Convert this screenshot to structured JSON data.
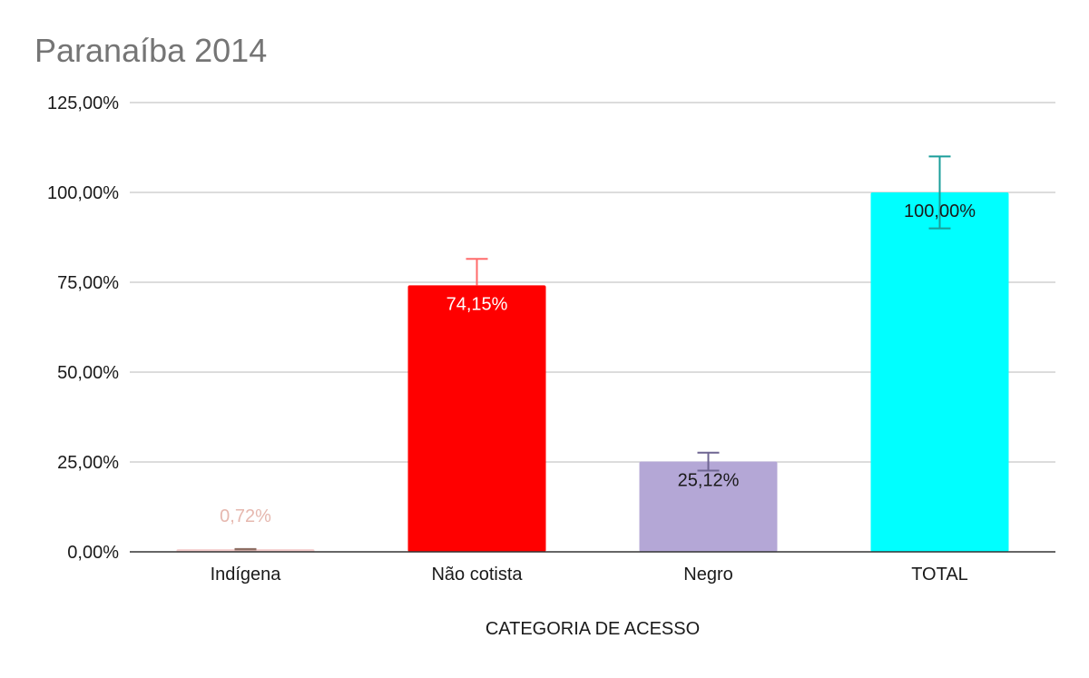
{
  "chart_data": {
    "type": "bar",
    "title": "Paranaíba 2014",
    "xlabel": "CATEGORIA DE ACESSO",
    "ylabel": "",
    "ylim": [
      0,
      125
    ],
    "yticks": [
      0,
      25,
      50,
      75,
      100,
      125
    ],
    "ytick_labels": [
      "0,00%",
      "25,00%",
      "50,00%",
      "75,00%",
      "100,00%",
      "125,00%"
    ],
    "grid": true,
    "legend": "none",
    "categories": [
      "Indígena",
      "Não cotista",
      "Negro",
      "TOTAL"
    ],
    "values": [
      0.72,
      74.15,
      25.12,
      100.0
    ],
    "data_labels": [
      "0,72%",
      "74,15%",
      "25,12%",
      "100,00%"
    ],
    "error_bars": [
      {
        "low": 0.72,
        "high": 0.72
      },
      {
        "low": 74.15,
        "high": 81.5
      },
      {
        "low": 22.6,
        "high": 27.6
      },
      {
        "low": 90.0,
        "high": 110.0
      }
    ],
    "colors": [
      "#f4cccc",
      "#ff0000",
      "#b4a7d6",
      "#00ffff"
    ],
    "error_colors": [
      "#8d6e63",
      "#ff6b6b",
      "#6e6591",
      "#1a9e9a"
    ],
    "label_colors": [
      "#e6b8af",
      "#ffffff",
      "#1a1a1a",
      "#1a1a1a"
    ]
  }
}
